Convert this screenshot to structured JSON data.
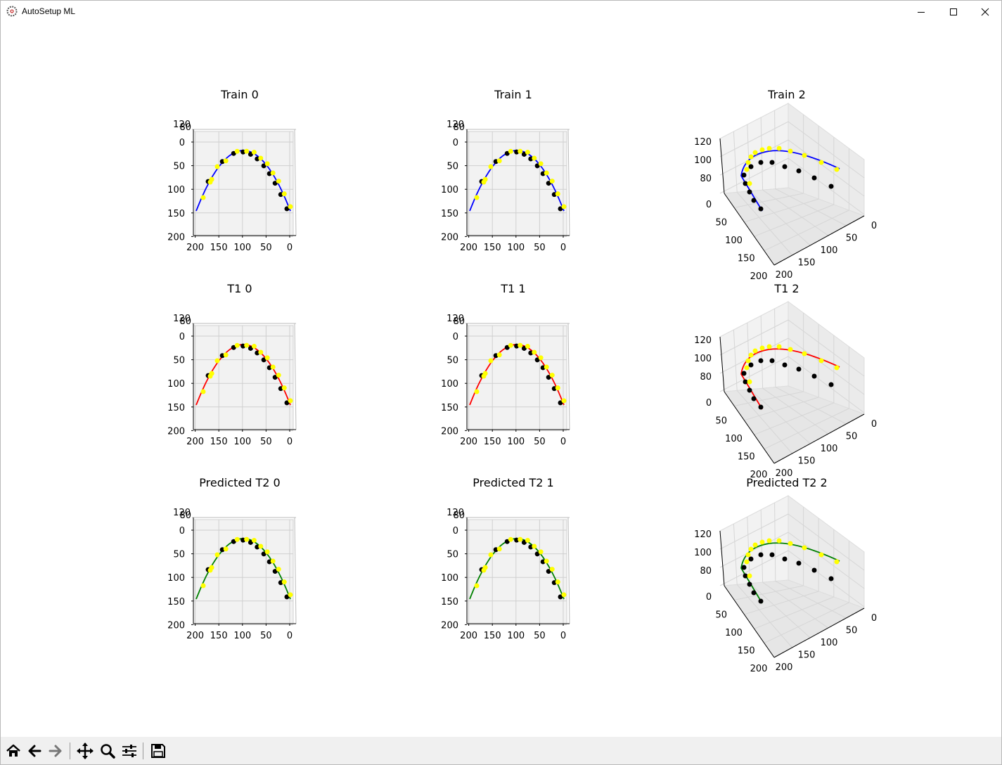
{
  "window": {
    "title": "AutoSetup ML",
    "icon": "gear-app-icon",
    "controls": [
      "minimize-icon",
      "maximize-icon",
      "close-icon"
    ]
  },
  "toolbar": {
    "buttons": [
      {
        "name": "home",
        "icon": "home-icon"
      },
      {
        "name": "back",
        "icon": "back-arrow-icon"
      },
      {
        "name": "forward",
        "icon": "forward-arrow-icon"
      },
      {
        "name": "pan",
        "icon": "move-icon"
      },
      {
        "name": "zoom",
        "icon": "zoom-icon"
      },
      {
        "name": "configure-subplots",
        "icon": "sliders-icon"
      },
      {
        "name": "save",
        "icon": "save-icon"
      }
    ]
  },
  "colors": {
    "train": "#0000ff",
    "t1": "#ff0000",
    "predicted": "#008000",
    "marker_a": "#000000",
    "marker_b": "#ffff00",
    "pane": "#f2f2f2"
  },
  "chart_data": [
    {
      "type": "line",
      "title": "Train 0",
      "view": "top",
      "line_color": "blue",
      "x_ticks": [
        "200",
        "150",
        "100",
        "50",
        "0"
      ],
      "y_ticks": [
        "0",
        "50",
        "100",
        "150",
        "200"
      ],
      "z_ticks": [
        "120",
        "80"
      ]
    },
    {
      "type": "line",
      "title": "Train 1",
      "view": "top",
      "line_color": "blue",
      "x_ticks": [
        "200",
        "150",
        "100",
        "50",
        "0"
      ],
      "y_ticks": [
        "0",
        "50",
        "100",
        "150",
        "200"
      ],
      "z_ticks": [
        "120",
        "80"
      ]
    },
    {
      "type": "line",
      "title": "Train 2",
      "view": "3d",
      "line_color": "blue",
      "x_ticks": [
        "0",
        "50",
        "100",
        "150",
        "200"
      ],
      "y_ticks": [
        "0",
        "50",
        "100",
        "150",
        "200"
      ],
      "z_ticks": [
        "80",
        "100",
        "120"
      ]
    },
    {
      "type": "line",
      "title": "T1 0",
      "view": "top",
      "line_color": "red",
      "x_ticks": [
        "200",
        "150",
        "100",
        "50",
        "0"
      ],
      "y_ticks": [
        "0",
        "50",
        "100",
        "150",
        "200"
      ],
      "z_ticks": [
        "120",
        "80"
      ]
    },
    {
      "type": "line",
      "title": "T1 1",
      "view": "top",
      "line_color": "red",
      "x_ticks": [
        "200",
        "150",
        "100",
        "50",
        "0"
      ],
      "y_ticks": [
        "0",
        "50",
        "100",
        "150",
        "200"
      ],
      "z_ticks": [
        "120",
        "80"
      ]
    },
    {
      "type": "line",
      "title": "T1 2",
      "view": "3d",
      "line_color": "red",
      "x_ticks": [
        "0",
        "50",
        "100",
        "150",
        "200"
      ],
      "y_ticks": [
        "0",
        "50",
        "100",
        "150",
        "200"
      ],
      "z_ticks": [
        "80",
        "100",
        "120"
      ]
    },
    {
      "type": "line",
      "title": "Predicted T2 0",
      "view": "top",
      "line_color": "green",
      "x_ticks": [
        "200",
        "150",
        "100",
        "50",
        "0"
      ],
      "y_ticks": [
        "0",
        "50",
        "100",
        "150",
        "200"
      ],
      "z_ticks": [
        "120",
        "80"
      ]
    },
    {
      "type": "line",
      "title": "Predicted T2 1",
      "view": "top",
      "line_color": "green",
      "x_ticks": [
        "200",
        "150",
        "100",
        "50",
        "0"
      ],
      "y_ticks": [
        "0",
        "50",
        "100",
        "150",
        "200"
      ],
      "z_ticks": [
        "120",
        "80"
      ]
    },
    {
      "type": "line",
      "title": "Predicted T2 2",
      "view": "3d",
      "line_color": "green",
      "x_ticks": [
        "0",
        "50",
        "100",
        "150",
        "200"
      ],
      "y_ticks": [
        "0",
        "50",
        "100",
        "150",
        "200"
      ],
      "z_ticks": [
        "80",
        "100",
        "120"
      ]
    }
  ]
}
